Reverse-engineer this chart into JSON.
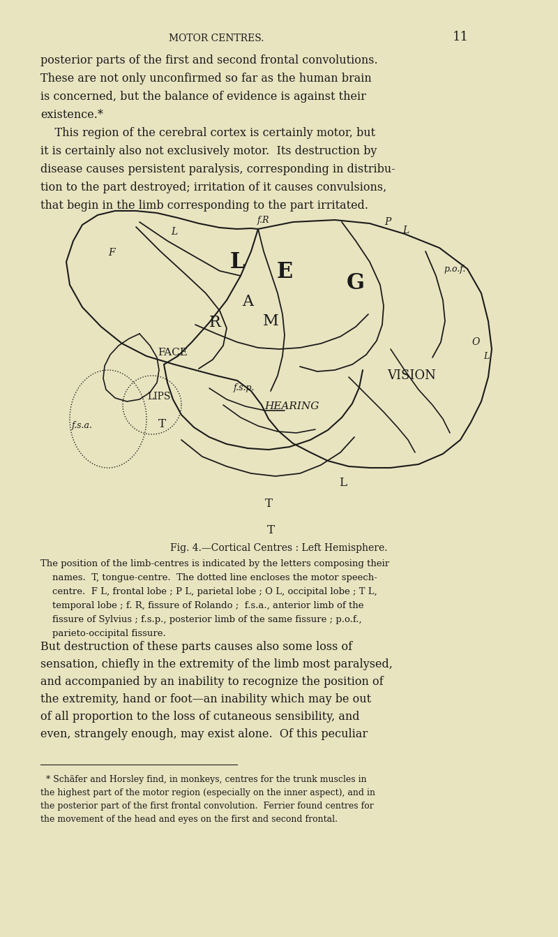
{
  "bg_color": "#e8e4c0",
  "text_color": "#1a1a1a",
  "page_number": "11",
  "header": "MOTOR CENTRES.",
  "top_text_lines": [
    "posterior parts of the first and second frontal convolutions.",
    "These are not only unconfirmed so far as the human brain",
    "is concerned, but the balance of evidence is against their",
    "existence.*",
    "    This region of the cerebral cortex is certainly motor, but",
    "it is certainly also not exclusively motor.  Its destruction by",
    "disease causes persistent paralysis, corresponding in distribu-",
    "tion to the part destroyed; irritation of it causes convulsions,",
    "that begin in the limb corresponding to the part irritated."
  ],
  "caption_title": "Fig. 4.—Cortical Centres : Left Hemisphere.",
  "caption_lines": [
    "The position of the limb-centres is indicated by the letters composing their",
    "    names.  T, tongue-centre.  The dotted line encloses the motor speech-",
    "    centre.  F L, frontal lobe ; P L, parietal lobe ; O L, occipital lobe ; T L,",
    "    temporal lobe ; f. R, fissure of Rolando ;  f.s.a., anterior limb of the",
    "    fissure of Sylvius ; f.s.p., posterior limb of the same fissure ; p.o.f.,",
    "    parieto-occipital fissure."
  ],
  "body_text_lines": [
    "But destruction of these parts causes also some loss of",
    "sensation, chiefly in the extremity of the limb most paralysed,",
    "and accompanied by an inability to recognize the position of",
    "the extremity, hand or foot—an inability which may be out",
    "of all proportion to the loss of cutaneous sensibility, and",
    "even, strangely enough, may exist alone.  Of this peculiar"
  ],
  "footnote_lines": [
    "  * Schäfer and Horsley find, in monkeys, centres for the trunk muscles in",
    "the highest part of the motor region (especially on the inner aspect), and in",
    "the posterior part of the first frontal convolution.  Ferrier found centres for",
    "the movement of the head and eyes on the first and second frontal."
  ]
}
